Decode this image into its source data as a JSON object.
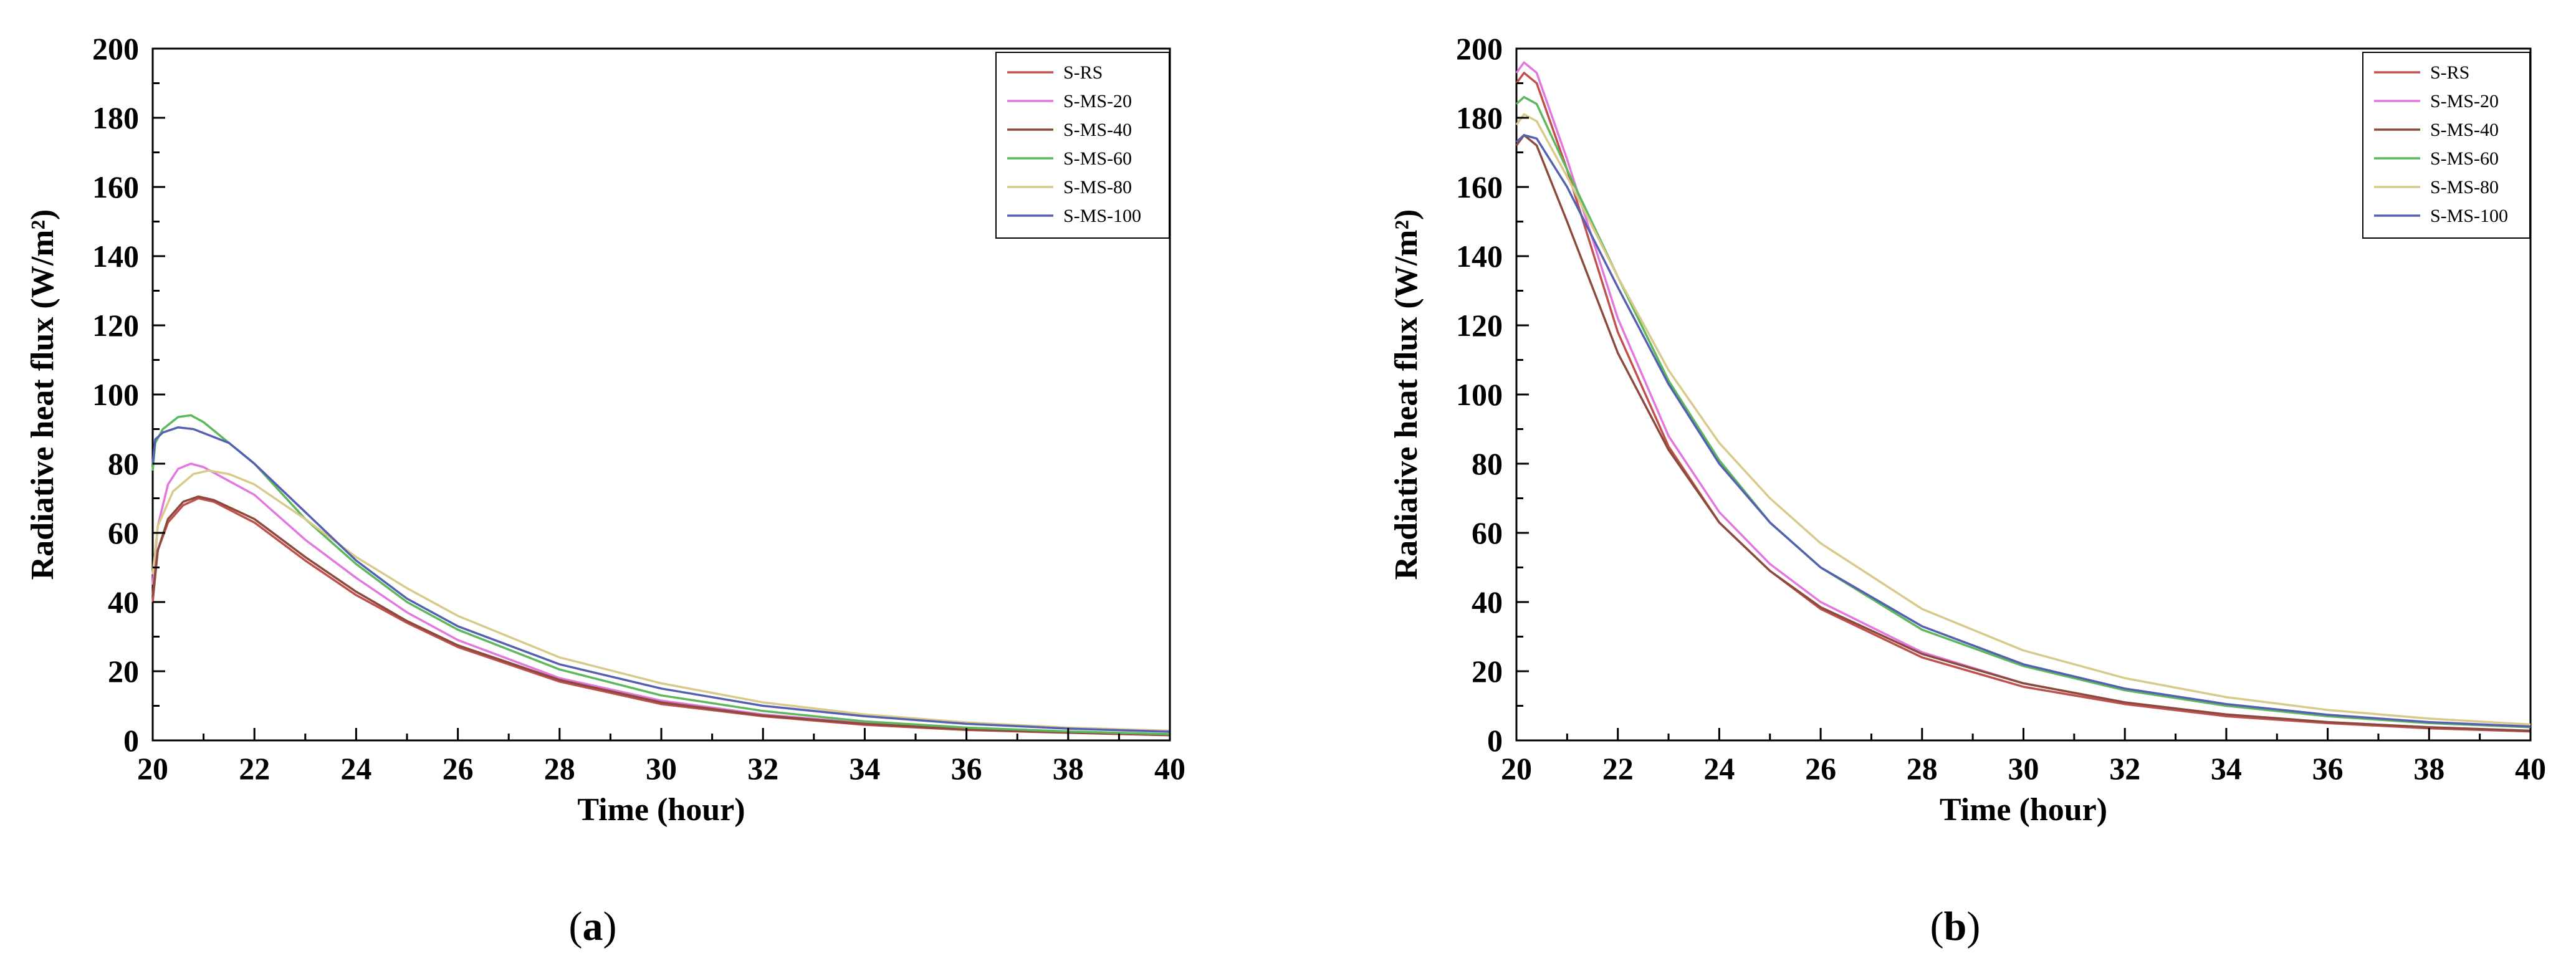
{
  "chart_data": [
    {
      "type": "line",
      "caption_letter": "a",
      "xlabel": "Time (hour)",
      "ylabel": "Radiative heat flux (W/m²)",
      "xlim": [
        20,
        40
      ],
      "ylim": [
        0,
        200
      ],
      "xticks": [
        "20",
        "22",
        "24",
        "26",
        "28",
        "30",
        "32",
        "34",
        "36",
        "38",
        "40"
      ],
      "yticks": [
        "0",
        "20",
        "40",
        "60",
        "80",
        "100",
        "120",
        "140",
        "160",
        "180",
        "200"
      ],
      "legend_position": "top-right",
      "grid": false,
      "series": [
        {
          "name": "S-RS",
          "color": "#c0504d",
          "points": [
            [
              20,
              40
            ],
            [
              20.1,
              55
            ],
            [
              20.3,
              63
            ],
            [
              20.6,
              68
            ],
            [
              20.9,
              70
            ],
            [
              21.2,
              69
            ],
            [
              22,
              63
            ],
            [
              23,
              52
            ],
            [
              24,
              42
            ],
            [
              25,
              34
            ],
            [
              26,
              27
            ],
            [
              28,
              17
            ],
            [
              30,
              10.5
            ],
            [
              32,
              7
            ],
            [
              34,
              4.5
            ],
            [
              36,
              3
            ],
            [
              38,
              2.2
            ],
            [
              40,
              1.5
            ]
          ]
        },
        {
          "name": "S-MS-20",
          "color": "#e377e0",
          "points": [
            [
              20,
              45
            ],
            [
              20.1,
              62
            ],
            [
              20.3,
              74
            ],
            [
              20.5,
              78.5
            ],
            [
              20.75,
              80
            ],
            [
              21,
              79
            ],
            [
              22,
              71
            ],
            [
              23,
              58
            ],
            [
              24,
              47
            ],
            [
              25,
              37
            ],
            [
              26,
              29
            ],
            [
              28,
              18
            ],
            [
              30,
              11.5
            ],
            [
              32,
              7.5
            ],
            [
              34,
              5
            ],
            [
              36,
              3.3
            ],
            [
              38,
              2.3
            ],
            [
              40,
              1.7
            ]
          ]
        },
        {
          "name": "S-MS-40",
          "color": "#8b4a3c",
          "points": [
            [
              20,
              42
            ],
            [
              20.1,
              55
            ],
            [
              20.3,
              64
            ],
            [
              20.6,
              69
            ],
            [
              20.9,
              70.5
            ],
            [
              21.2,
              69.5
            ],
            [
              22,
              64
            ],
            [
              23,
              53
            ],
            [
              24,
              43
            ],
            [
              25,
              34.5
            ],
            [
              26,
              27.5
            ],
            [
              28,
              17.5
            ],
            [
              30,
              11
            ],
            [
              32,
              7.2
            ],
            [
              34,
              4.8
            ],
            [
              36,
              3.2
            ],
            [
              38,
              2.3
            ],
            [
              40,
              1.6
            ]
          ]
        },
        {
          "name": "S-MS-60",
          "color": "#5cb85c",
          "points": [
            [
              20,
              78
            ],
            [
              20.05,
              86
            ],
            [
              20.2,
              90
            ],
            [
              20.5,
              93.5
            ],
            [
              20.75,
              94
            ],
            [
              21,
              92
            ],
            [
              22,
              80
            ],
            [
              23,
              64
            ],
            [
              24,
              51
            ],
            [
              25,
              40
            ],
            [
              26,
              32
            ],
            [
              28,
              20.5
            ],
            [
              30,
              13
            ],
            [
              32,
              8.5
            ],
            [
              34,
              5.5
            ],
            [
              36,
              3.7
            ],
            [
              38,
              2.6
            ],
            [
              40,
              1.8
            ]
          ]
        },
        {
          "name": "S-MS-80",
          "color": "#d8ca8a",
          "points": [
            [
              20,
              48
            ],
            [
              20.1,
              62
            ],
            [
              20.4,
              72
            ],
            [
              20.8,
              77
            ],
            [
              21.1,
              78
            ],
            [
              21.5,
              77
            ],
            [
              22,
              74
            ],
            [
              23,
              64
            ],
            [
              24,
              53
            ],
            [
              25,
              44
            ],
            [
              26,
              36
            ],
            [
              28,
              24
            ],
            [
              30,
              16.5
            ],
            [
              32,
              11
            ],
            [
              34,
              7.5
            ],
            [
              36,
              5.2
            ],
            [
              38,
              3.7
            ],
            [
              40,
              2.8
            ]
          ]
        },
        {
          "name": "S-MS-100",
          "color": "#5560b0",
          "points": [
            [
              20,
              80
            ],
            [
              20.05,
              87
            ],
            [
              20.2,
              89
            ],
            [
              20.5,
              90.5
            ],
            [
              20.8,
              90
            ],
            [
              21.5,
              86
            ],
            [
              22,
              80
            ],
            [
              23,
              66
            ],
            [
              24,
              52
            ],
            [
              25,
              41
            ],
            [
              26,
              33
            ],
            [
              28,
              22
            ],
            [
              30,
              15
            ],
            [
              32,
              10
            ],
            [
              34,
              7
            ],
            [
              36,
              4.8
            ],
            [
              38,
              3.4
            ],
            [
              40,
              2.5
            ]
          ]
        }
      ]
    },
    {
      "type": "line",
      "caption_letter": "b",
      "xlabel": "Time (hour)",
      "ylabel": "Radiative heat flux (W/m²)",
      "xlim": [
        20,
        40
      ],
      "ylim": [
        0,
        200
      ],
      "xticks": [
        "20",
        "22",
        "24",
        "26",
        "28",
        "30",
        "32",
        "34",
        "36",
        "38",
        "40"
      ],
      "yticks": [
        "0",
        "20",
        "40",
        "60",
        "80",
        "100",
        "120",
        "140",
        "160",
        "180",
        "200"
      ],
      "legend_position": "top-right",
      "grid": false,
      "series": [
        {
          "name": "S-RS",
          "color": "#c0504d",
          "points": [
            [
              20,
              190
            ],
            [
              20.15,
              193
            ],
            [
              20.4,
              190
            ],
            [
              21,
              165
            ],
            [
              22,
              118
            ],
            [
              23,
              85
            ],
            [
              24,
              63
            ],
            [
              25,
              49
            ],
            [
              26,
              38
            ],
            [
              28,
              24
            ],
            [
              30,
              15.5
            ],
            [
              32,
              10.5
            ],
            [
              34,
              7
            ],
            [
              36,
              5
            ],
            [
              38,
              3.5
            ],
            [
              40,
              2.6
            ]
          ]
        },
        {
          "name": "S-MS-20",
          "color": "#e377e0",
          "points": [
            [
              20,
              193
            ],
            [
              20.15,
              196
            ],
            [
              20.4,
              193
            ],
            [
              21,
              168
            ],
            [
              22,
              122
            ],
            [
              23,
              88
            ],
            [
              24,
              66
            ],
            [
              25,
              51
            ],
            [
              26,
              40
            ],
            [
              28,
              25.5
            ],
            [
              30,
              16.5
            ],
            [
              32,
              11
            ],
            [
              34,
              7.5
            ],
            [
              36,
              5.3
            ],
            [
              38,
              3.8
            ],
            [
              40,
              2.8
            ]
          ]
        },
        {
          "name": "S-MS-40",
          "color": "#8b4a3c",
          "points": [
            [
              20,
              172
            ],
            [
              20.15,
              175
            ],
            [
              20.4,
              172
            ],
            [
              21,
              150
            ],
            [
              22,
              112
            ],
            [
              23,
              84
            ],
            [
              24,
              63
            ],
            [
              25,
              49
            ],
            [
              26,
              38.5
            ],
            [
              28,
              25
            ],
            [
              30,
              16.5
            ],
            [
              32,
              11
            ],
            [
              34,
              7.5
            ],
            [
              36,
              5.3
            ],
            [
              38,
              3.8
            ],
            [
              40,
              2.8
            ]
          ]
        },
        {
          "name": "S-MS-60",
          "color": "#5cb85c",
          "points": [
            [
              20,
              184
            ],
            [
              20.15,
              186
            ],
            [
              20.4,
              184
            ],
            [
              21,
              165
            ],
            [
              22,
              134
            ],
            [
              23,
              104
            ],
            [
              24,
              81
            ],
            [
              25,
              63
            ],
            [
              26,
              50
            ],
            [
              28,
              32
            ],
            [
              30,
              21.5
            ],
            [
              32,
              14.5
            ],
            [
              34,
              10
            ],
            [
              36,
              7
            ],
            [
              38,
              5
            ],
            [
              40,
              3.8
            ]
          ]
        },
        {
          "name": "S-MS-80",
          "color": "#d8ca8a",
          "points": [
            [
              20,
              178
            ],
            [
              20.15,
              181
            ],
            [
              20.4,
              179
            ],
            [
              21,
              163
            ],
            [
              22,
              134
            ],
            [
              23,
              107
            ],
            [
              24,
              86
            ],
            [
              25,
              70
            ],
            [
              26,
              57
            ],
            [
              28,
              38
            ],
            [
              30,
              26
            ],
            [
              32,
              18
            ],
            [
              34,
              12.5
            ],
            [
              36,
              8.8
            ],
            [
              38,
              6.3
            ],
            [
              40,
              4.6
            ]
          ]
        },
        {
          "name": "S-MS-100",
          "color": "#5560b0",
          "points": [
            [
              20,
              173
            ],
            [
              20.15,
              175
            ],
            [
              20.4,
              174
            ],
            [
              21,
              160
            ],
            [
              22,
              131
            ],
            [
              23,
              103
            ],
            [
              24,
              80
            ],
            [
              25,
              63
            ],
            [
              26,
              50
            ],
            [
              28,
              33
            ],
            [
              30,
              22
            ],
            [
              32,
              15
            ],
            [
              34,
              10.5
            ],
            [
              36,
              7.4
            ],
            [
              38,
              5.3
            ],
            [
              40,
              4
            ]
          ]
        }
      ]
    }
  ]
}
